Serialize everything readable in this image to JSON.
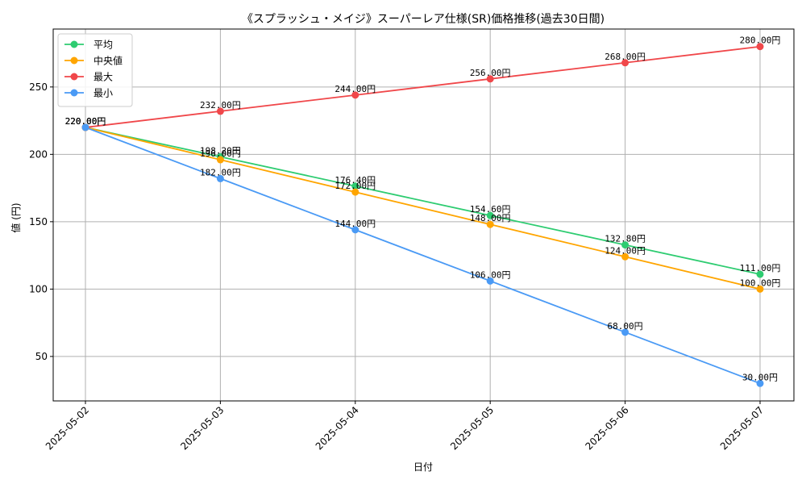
{
  "chart_data": {
    "type": "line",
    "title": "《スプラッシュ・メイジ》スーパーレア仕様(SR)価格推移(過去30日間)",
    "xlabel": "日付",
    "ylabel": "値 (円)",
    "categories": [
      "2025-05-02",
      "2025-05-03",
      "2025-05-04",
      "2025-05-05",
      "2025-05-06",
      "2025-05-07"
    ],
    "ylim": [
      17,
      293
    ],
    "yticks": [
      50,
      100,
      150,
      200,
      250
    ],
    "grid": true,
    "legend_position": "top-left",
    "value_suffix": "円",
    "series": [
      {
        "name": "平均",
        "color": "#2ecc71",
        "values": [
          220.0,
          198.2,
          176.4,
          154.6,
          132.8,
          111.0
        ],
        "labels": [
          "220.00円",
          "198.20円",
          "176.40円",
          "154.60円",
          "132.80円",
          "111.00円"
        ]
      },
      {
        "name": "中央値",
        "color": "#ffa500",
        "values": [
          220.0,
          196.0,
          172.0,
          148.0,
          124.0,
          100.0
        ],
        "labels": [
          "220.00円",
          "196.00円",
          "172.00円",
          "148.00円",
          "124.00円",
          "100.00円"
        ]
      },
      {
        "name": "最大",
        "color": "#f0474a",
        "values": [
          220.0,
          232.0,
          244.0,
          256.0,
          268.0,
          280.0
        ],
        "labels": [
          "220.00円",
          "232.00円",
          "244.00円",
          "256.00円",
          "268.00円",
          "280.00円"
        ]
      },
      {
        "name": "最小",
        "color": "#4a9af5",
        "values": [
          220.0,
          182.0,
          144.0,
          106.0,
          68.0,
          30.0
        ],
        "labels": [
          "220.00円",
          "182.00円",
          "144.00円",
          "106.00円",
          "68.00円",
          "30.00円"
        ]
      }
    ]
  }
}
